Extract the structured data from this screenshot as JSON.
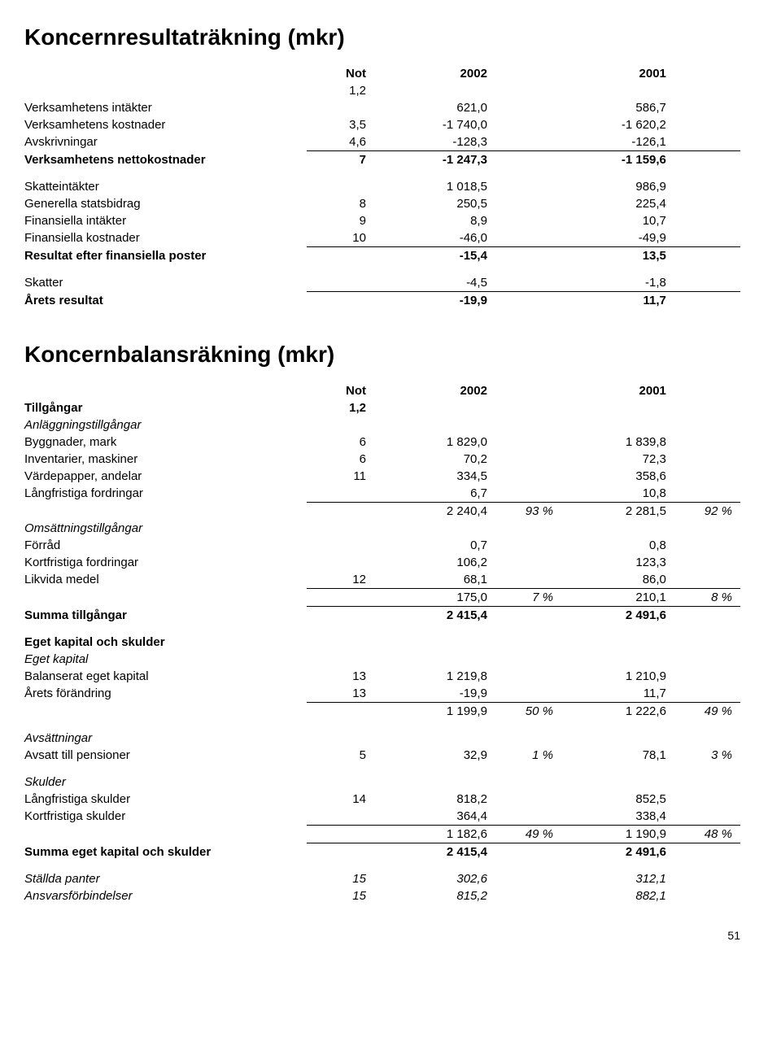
{
  "title1": "Koncernresultaträkning (mkr)",
  "title2": "Koncernbalansräkning (mkr)",
  "header": {
    "not": "Not",
    "y2002": "2002",
    "y2001": "2001"
  },
  "pl": {
    "note12": "1,2",
    "rows": [
      {
        "label": "Verksamhetens intäkter",
        "not": "",
        "v2002": "621,0",
        "v2001": "586,7"
      },
      {
        "label": "Verksamhetens kostnader",
        "not": "3,5",
        "v2002": "-1 740,0",
        "v2001": "-1 620,2"
      },
      {
        "label": "Avskrivningar",
        "not": "4,6",
        "v2002": "-128,3",
        "v2001": "-126,1"
      }
    ],
    "netto": {
      "label": "Verksamhetens nettokostnader",
      "not": "7",
      "v2002": "-1 247,3",
      "v2001": "-1 159,6"
    },
    "rows2": [
      {
        "label": "Skatteintäkter",
        "not": "",
        "v2002": "1 018,5",
        "v2001": "986,9"
      },
      {
        "label": "Generella statsbidrag",
        "not": "8",
        "v2002": "250,5",
        "v2001": "225,4"
      },
      {
        "label": "Finansiella intäkter",
        "not": "9",
        "v2002": "8,9",
        "v2001": "10,7"
      },
      {
        "label": "Finansiella kostnader",
        "not": "10",
        "v2002": "-46,0",
        "v2001": "-49,9"
      }
    ],
    "finpost": {
      "label": "Resultat efter finansiella poster",
      "v2002": "-15,4",
      "v2001": "13,5"
    },
    "skatter": {
      "label": "Skatter",
      "v2002": "-4,5",
      "v2001": "-1,8"
    },
    "arets": {
      "label": "Årets resultat",
      "v2002": "-19,9",
      "v2001": "11,7"
    }
  },
  "bs": {
    "tillgangar_label": "Tillgångar",
    "tillgangar_not": "1,2",
    "anlagg_label": "Anläggningstillgångar",
    "anlagg_rows": [
      {
        "label": "Byggnader, mark",
        "not": "6",
        "v2002": "1 829,0",
        "v2001": "1 839,8"
      },
      {
        "label": "Inventarier, maskiner",
        "not": "6",
        "v2002": "70,2",
        "v2001": "72,3"
      },
      {
        "label": "Värdepapper, andelar",
        "not": "11",
        "v2002": "334,5",
        "v2001": "358,6"
      },
      {
        "label": "Långfristiga fordringar",
        "not": "",
        "v2002": "6,7",
        "v2001": "10,8"
      }
    ],
    "anlagg_sum": {
      "v2002": "2 240,4",
      "p2002": "93 %",
      "v2001": "2 281,5",
      "p2001": "92 %"
    },
    "oms_label": "Omsättningstillgångar",
    "oms_rows": [
      {
        "label": "Förråd",
        "not": "",
        "v2002": "0,7",
        "v2001": "0,8"
      },
      {
        "label": "Kortfristiga fordringar",
        "not": "",
        "v2002": "106,2",
        "v2001": "123,3"
      },
      {
        "label": "Likvida medel",
        "not": "12",
        "v2002": "68,1",
        "v2001": "86,0"
      }
    ],
    "oms_sum": {
      "v2002": "175,0",
      "p2002": "7 %",
      "v2001": "210,1",
      "p2001": "8 %"
    },
    "summa_tillg": {
      "label": "Summa tillgångar",
      "v2002": "2 415,4",
      "v2001": "2 491,6"
    },
    "ek_skulder_label": "Eget kapital och skulder",
    "ek_label": "Eget kapital",
    "ek_rows": [
      {
        "label": "Balanserat eget kapital",
        "not": "13",
        "v2002": "1 219,8",
        "v2001": "1 210,9"
      },
      {
        "label": "Årets förändring",
        "not": "13",
        "v2002": "-19,9",
        "v2001": "11,7"
      }
    ],
    "ek_sum": {
      "v2002": "1 199,9",
      "p2002": "50 %",
      "v2001": "1 222,6",
      "p2001": "49 %"
    },
    "avsatt_label": "Avsättningar",
    "avsatt": {
      "label": "Avsatt till pensioner",
      "not": "5",
      "v2002": "32,9",
      "p2002": "1 %",
      "v2001": "78,1",
      "p2001": "3 %"
    },
    "skulder_label": "Skulder",
    "skulder_rows": [
      {
        "label": "Långfristiga skulder",
        "not": "14",
        "v2002": "818,2",
        "v2001": "852,5"
      },
      {
        "label": "Kortfristiga skulder",
        "not": "",
        "v2002": "364,4",
        "v2001": "338,4"
      }
    ],
    "skulder_sum": {
      "v2002": "1 182,6",
      "p2002": "49 %",
      "v2001": "1 190,9",
      "p2001": "48 %"
    },
    "summa_ek": {
      "label": "Summa eget kapital och skulder",
      "v2002": "2 415,4",
      "v2001": "2 491,6"
    },
    "footer": [
      {
        "label": "Ställda panter",
        "not": "15",
        "v2002": "302,6",
        "v2001": "312,1"
      },
      {
        "label": "Ansvarsförbindelser",
        "not": "15",
        "v2002": "815,2",
        "v2001": "882,1"
      }
    ]
  },
  "page_number": "51"
}
